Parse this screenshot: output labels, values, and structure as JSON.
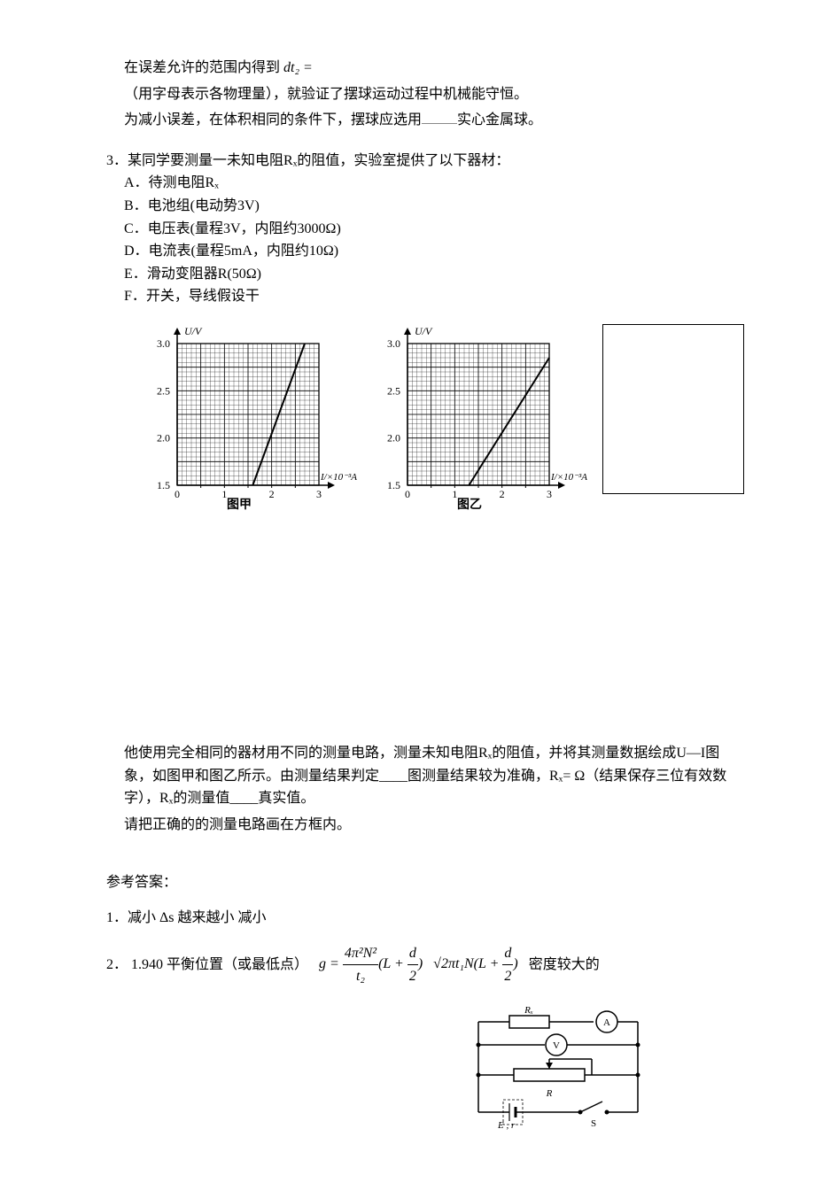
{
  "preamble": {
    "line1_a": "在误差允许的范围内得到",
    "line1_b": "dt₂ =",
    "line2": "（用字母表示各物理量），就验证了摆球运动过程中机械能守恒。",
    "line3_a": "为减小误差，在体积相同的条件下，摆球应选用",
    "line3_b": "实心金属球。"
  },
  "q3": {
    "num": "3．",
    "stem": "某同学要测量一未知电阻Rₓ的阻值，实验室提供了以下器材：",
    "items": {
      "A": "A．待测电阻Rₓ",
      "B": "B．电池组(电动势3V)",
      "C": "C．电压表(量程3V，内阻约3000Ω)",
      "D": "D．电流表(量程5mA，内阻约10Ω)",
      "E": "E．滑动变阻器R(50Ω)",
      "F": "F．开关，导线假设干"
    },
    "post1": "他使用完全相同的器材用不同的测量电路，测量未知电阻Rₓ的阻值，并将其测量数据绘成U—I图象，如图甲和图乙所示。由测量结果判定____图测量结果较为准确，Rₓ=    Ω（结果保存三位有效数字），Rₓ的测量值____真实值。",
    "post2": "请把正确的的测量电路画在方框内。"
  },
  "charts": {
    "jia": {
      "title": "图甲",
      "ylabel": "U/V",
      "xlabel": "I/×10⁻³A",
      "yticks": [
        1.5,
        2.0,
        2.5,
        3.0
      ],
      "xticks": [
        0,
        1,
        2,
        3
      ],
      "grid_major": 6,
      "grid_minor": 5,
      "line": {
        "x1": 1.6,
        "y1": 1.5,
        "x2": 2.7,
        "y2": 3.0
      },
      "grid_color": "#000000",
      "line_color": "#000000",
      "bg_color": "#ffffff",
      "axis_fontsize": 12,
      "axis_font": "italic"
    },
    "yi": {
      "title": "图乙",
      "ylabel": "U/V",
      "xlabel": "I/×10⁻³A",
      "yticks": [
        1.5,
        2.0,
        2.5,
        3.0
      ],
      "xticks": [
        0,
        1,
        2,
        3
      ],
      "line": {
        "x1": 1.3,
        "y1": 1.5,
        "x2": 3.0,
        "y2": 2.85
      },
      "grid_color": "#000000",
      "line_color": "#000000",
      "bg_color": "#ffffff",
      "axis_fontsize": 12,
      "axis_font": "italic"
    }
  },
  "answers": {
    "head": "参考答案：",
    "a1": "1．减小 Δs 越来越小 减小",
    "a2_a": "2． 1.940 平衡位置（或最低点）",
    "a2_f1_html": "g = <span style='display:inline-block;vertical-align:middle;text-align:center'><span style='display:block;border-bottom:1px solid #000;padding:0 2px'>4π²N²</span><span style='display:block;padding:0 2px'>t₂</span></span>(L + <span style='display:inline-block;vertical-align:middle;text-align:center'><span style='display:block;border-bottom:1px solid #000;padding:0 2px'>d</span><span style='display:block;padding:0 2px'>2</span></span>)",
    "a2_f2_html": "√2πt₁N(L + <span style='display:inline-block;vertical-align:middle;text-align:center'><span style='display:block;border-bottom:1px solid #000;padding:0 2px'>d</span><span style='display:block;padding:0 2px'>2</span></span>)",
    "a2_b": "密度较大的"
  },
  "circuit": {
    "labels": {
      "Rx": "Rₓ",
      "A": "A",
      "V": "V",
      "R": "R",
      "E": "E , r",
      "S": "S"
    }
  }
}
